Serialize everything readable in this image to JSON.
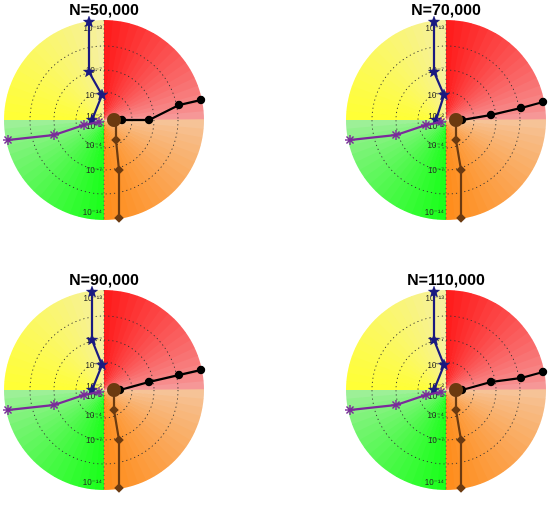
{
  "chart_data": [
    {
      "type": "radial",
      "title": "N=50,000",
      "tick_labels": [
        "10⁻¹³",
        "10⁻⁷",
        "10⁻⁴",
        "10⁻²",
        "10⁻²",
        "10⁻⁴",
        "10⁻⁷",
        "10⁻¹⁴"
      ],
      "quadrant_colors": {
        "top-left": "#ffff33",
        "top-right": "#ff1a1a",
        "bottom-left": "#1aff1a",
        "bottom-right": "#ff8c1a"
      },
      "series": [
        {
          "name": "",
          "direction": "up",
          "marker": "star",
          "color": "#1a1a80",
          "points": [
            [
              -0.15,
              0.98
            ],
            [
              -0.15,
              0.48
            ],
            [
              -0.02,
              0.25
            ],
            [
              -0.12,
              0.0
            ]
          ]
        },
        {
          "name": "",
          "direction": "right",
          "marker": "circle",
          "color": "#000000",
          "points": [
            [
              0.18,
              0.0
            ],
            [
              0.45,
              0.0
            ],
            [
              0.75,
              0.15
            ],
            [
              0.97,
              0.2
            ]
          ]
        },
        {
          "name": "",
          "direction": "left",
          "marker": "asterisk",
          "color": "#7a2a9a",
          "points": [
            [
              -0.96,
              -0.2
            ],
            [
              -0.5,
              -0.15
            ],
            [
              -0.2,
              -0.05
            ],
            [
              -0.05,
              -0.02
            ]
          ]
        },
        {
          "name": "",
          "direction": "down",
          "marker": "diamond",
          "color": "#6b3a10",
          "points": [
            [
              0.12,
              0.0
            ],
            [
              0.12,
              -0.2
            ],
            [
              0.15,
              -0.5
            ],
            [
              0.15,
              -0.98
            ]
          ]
        }
      ]
    },
    {
      "type": "radial",
      "title": "N=70,000",
      "tick_labels": [
        "10⁻¹³",
        "10⁻⁷",
        "10⁻⁴",
        "10⁻²",
        "10⁻²",
        "10⁻⁴",
        "10⁻⁷",
        "10⁻¹⁴"
      ],
      "quadrant_colors": {
        "top-left": "#ffff33",
        "top-right": "#ff1a1a",
        "bottom-left": "#1aff1a",
        "bottom-right": "#ff8c1a"
      },
      "series": [
        {
          "name": "",
          "direction": "up",
          "marker": "star",
          "color": "#1a1a80",
          "points": [
            [
              -0.12,
              0.98
            ],
            [
              -0.12,
              0.48
            ],
            [
              -0.02,
              0.25
            ],
            [
              -0.1,
              0.0
            ]
          ]
        },
        {
          "name": "",
          "direction": "right",
          "marker": "circle",
          "color": "#000000",
          "points": [
            [
              0.16,
              0.0
            ],
            [
              0.45,
              0.05
            ],
            [
              0.75,
              0.12
            ],
            [
              0.97,
              0.18
            ]
          ]
        },
        {
          "name": "",
          "direction": "left",
          "marker": "asterisk",
          "color": "#7a2a9a",
          "points": [
            [
              -0.96,
              -0.2
            ],
            [
              -0.5,
              -0.15
            ],
            [
              -0.2,
              -0.05
            ],
            [
              -0.05,
              -0.02
            ]
          ]
        },
        {
          "name": "",
          "direction": "down",
          "marker": "diamond",
          "color": "#6b3a10",
          "points": [
            [
              0.1,
              0.0
            ],
            [
              0.1,
              -0.2
            ],
            [
              0.15,
              -0.5
            ],
            [
              0.15,
              -0.98
            ]
          ]
        }
      ]
    },
    {
      "type": "radial",
      "title": "N=90,000",
      "tick_labels": [
        "10⁻¹³",
        "10⁻⁷",
        "10⁻⁴",
        "10⁻²",
        "10⁻²",
        "10⁻⁴",
        "10⁻⁷",
        "10⁻¹⁴"
      ],
      "quadrant_colors": {
        "top-left": "#ffff33",
        "top-right": "#ff1a1a",
        "bottom-left": "#1aff1a",
        "bottom-right": "#ff8c1a"
      },
      "series": [
        {
          "name": "",
          "direction": "up",
          "marker": "star",
          "color": "#1a1a80",
          "points": [
            [
              -0.12,
              0.98
            ],
            [
              -0.12,
              0.5
            ],
            [
              -0.02,
              0.25
            ],
            [
              -0.12,
              0.0
            ]
          ]
        },
        {
          "name": "",
          "direction": "right",
          "marker": "circle",
          "color": "#000000",
          "points": [
            [
              0.16,
              0.0
            ],
            [
              0.45,
              0.08
            ],
            [
              0.75,
              0.15
            ],
            [
              0.97,
              0.2
            ]
          ]
        },
        {
          "name": "",
          "direction": "left",
          "marker": "asterisk",
          "color": "#7a2a9a",
          "points": [
            [
              -0.96,
              -0.2
            ],
            [
              -0.5,
              -0.15
            ],
            [
              -0.2,
              -0.05
            ],
            [
              -0.05,
              -0.02
            ]
          ]
        },
        {
          "name": "",
          "direction": "down",
          "marker": "diamond",
          "color": "#6b3a10",
          "points": [
            [
              0.1,
              0.0
            ],
            [
              0.1,
              -0.2
            ],
            [
              0.15,
              -0.5
            ],
            [
              0.15,
              -0.98
            ]
          ]
        }
      ]
    },
    {
      "type": "radial",
      "title": "N=110,000",
      "tick_labels": [
        "10⁻¹³",
        "10⁻⁷",
        "10⁻⁴",
        "10⁻²",
        "10⁻²",
        "10⁻⁴",
        "10⁻⁷",
        "10⁻¹⁴"
      ],
      "quadrant_colors": {
        "top-left": "#ffff33",
        "top-right": "#ff1a1a",
        "bottom-left": "#1aff1a",
        "bottom-right": "#ff8c1a"
      },
      "series": [
        {
          "name": "",
          "direction": "up",
          "marker": "star",
          "color": "#1a1a80",
          "points": [
            [
              -0.12,
              0.98
            ],
            [
              -0.12,
              0.5
            ],
            [
              -0.02,
              0.25
            ],
            [
              -0.12,
              0.0
            ]
          ]
        },
        {
          "name": "",
          "direction": "right",
          "marker": "circle",
          "color": "#000000",
          "points": [
            [
              0.16,
              0.0
            ],
            [
              0.45,
              0.08
            ],
            [
              0.75,
              0.12
            ],
            [
              0.97,
              0.18
            ]
          ]
        },
        {
          "name": "",
          "direction": "left",
          "marker": "asterisk",
          "color": "#7a2a9a",
          "points": [
            [
              -0.96,
              -0.2
            ],
            [
              -0.5,
              -0.15
            ],
            [
              -0.2,
              -0.05
            ],
            [
              -0.05,
              -0.02
            ]
          ]
        },
        {
          "name": "",
          "direction": "down",
          "marker": "diamond",
          "color": "#6b3a10",
          "points": [
            [
              0.1,
              0.0
            ],
            [
              0.1,
              -0.2
            ],
            [
              0.15,
              -0.5
            ],
            [
              0.15,
              -0.98
            ]
          ]
        }
      ]
    }
  ]
}
